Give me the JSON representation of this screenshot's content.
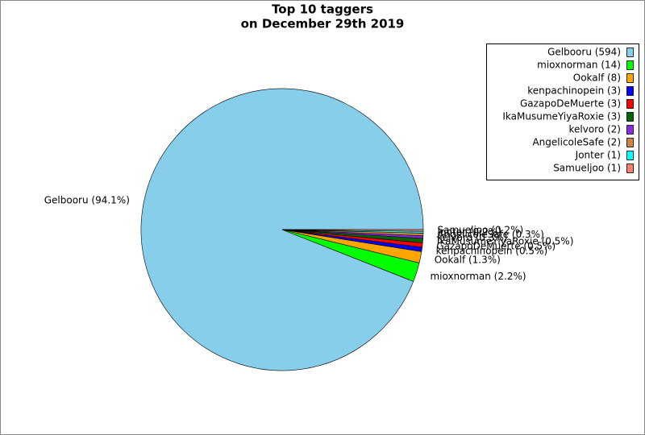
{
  "chart_data": {
    "type": "pie",
    "title": [
      "Top 10 taggers",
      "on December 29th 2019"
    ],
    "categories": [
      "Gelbooru (594)",
      "mioxnorman (14)",
      "Ookalf (8)",
      "kenpachinopein (3)",
      "GazapoDeMuerte (3)",
      "IkaMusumeYiyaRoxie (3)",
      "kelvoro (2)",
      "AngelicoleSafe (2)",
      "Jonter (1)",
      "Samueljoo (1)"
    ],
    "values": [
      94.1,
      2.2,
      1.3,
      0.5,
      0.5,
      0.5,
      0.3,
      0.3,
      0.2,
      0.2
    ],
    "value_labels": [
      "Gelbooru (94.1%)",
      "mioxnorman (2.2%)",
      "Ookalf (1.3%)",
      "kenpachinopein (0.5%)",
      "GazapoDeMuerte (0.5%)",
      "IkaMusumeYiyaRoxie (0.5%)",
      "kelvoro (0.3%)",
      "AngelicoleSafe (0.3%)",
      "Jonter (0.2%)",
      "Samueljoo (0.2%)"
    ],
    "colors": [
      "#87ceeb",
      "#00ff00",
      "#ffa500",
      "#0000ff",
      "#ff0000",
      "#006400",
      "#8a2be2",
      "#cd853f",
      "#00ffff",
      "#fa8072"
    ],
    "legend_position": "upper right"
  }
}
